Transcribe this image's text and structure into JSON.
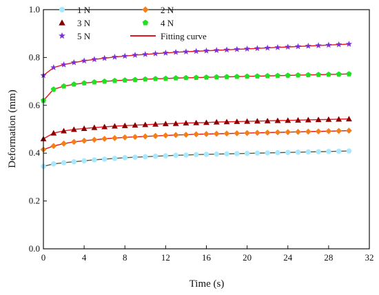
{
  "chart_data": {
    "type": "scatter",
    "xlabel": "Time (s)",
    "ylabel": "Deformation (mm)",
    "xlim": [
      0,
      32
    ],
    "ylim": [
      0.0,
      1.0
    ],
    "x_ticks": [
      "0",
      "4",
      "8",
      "12",
      "16",
      "20",
      "24",
      "28",
      "32"
    ],
    "y_ticks": [
      "0.0",
      "0.2",
      "0.4",
      "0.6",
      "0.8",
      "1.0"
    ],
    "legend_position": "top-left",
    "fit_label": "Fitting curve",
    "fit_color": "#e8101a",
    "x": [
      0,
      1,
      2,
      3,
      4,
      5,
      6,
      7,
      8,
      9,
      10,
      11,
      12,
      13,
      14,
      15,
      16,
      17,
      18,
      19,
      20,
      21,
      22,
      23,
      24,
      25,
      26,
      27,
      28,
      29,
      30
    ],
    "series": [
      {
        "name": "1 N",
        "marker": "circle",
        "color": "#a8e8ff",
        "fit_line_color": "#5a5a3a",
        "values": [
          0.345,
          0.355,
          0.36,
          0.364,
          0.368,
          0.372,
          0.375,
          0.378,
          0.381,
          0.383,
          0.385,
          0.387,
          0.389,
          0.391,
          0.392,
          0.394,
          0.395,
          0.396,
          0.397,
          0.398,
          0.399,
          0.4,
          0.401,
          0.402,
          0.403,
          0.404,
          0.405,
          0.406,
          0.407,
          0.408,
          0.409
        ]
      },
      {
        "name": "2 N",
        "marker": "diamond",
        "color": "#f57f17",
        "fit_line_color": "#e8101a",
        "values": [
          0.415,
          0.43,
          0.44,
          0.447,
          0.452,
          0.456,
          0.46,
          0.463,
          0.466,
          0.468,
          0.47,
          0.472,
          0.474,
          0.476,
          0.477,
          0.479,
          0.48,
          0.481,
          0.482,
          0.483,
          0.484,
          0.485,
          0.486,
          0.487,
          0.488,
          0.489,
          0.49,
          0.491,
          0.492,
          0.493,
          0.494
        ]
      },
      {
        "name": "3 N",
        "marker": "triangle",
        "color": "#8b0000",
        "fit_line_color": "#e8101a",
        "values": [
          0.46,
          0.484,
          0.493,
          0.499,
          0.503,
          0.507,
          0.51,
          0.513,
          0.515,
          0.517,
          0.519,
          0.521,
          0.523,
          0.524,
          0.526,
          0.527,
          0.528,
          0.53,
          0.531,
          0.532,
          0.533,
          0.534,
          0.535,
          0.536,
          0.537,
          0.538,
          0.539,
          0.54,
          0.541,
          0.542,
          0.543
        ]
      },
      {
        "name": "4 N",
        "marker": "pentagon",
        "color": "#22e022",
        "fit_line_color": "#e8101a",
        "values": [
          0.62,
          0.667,
          0.68,
          0.688,
          0.693,
          0.697,
          0.7,
          0.703,
          0.705,
          0.707,
          0.709,
          0.711,
          0.712,
          0.714,
          0.715,
          0.716,
          0.717,
          0.718,
          0.719,
          0.72,
          0.721,
          0.722,
          0.723,
          0.724,
          0.725,
          0.726,
          0.727,
          0.728,
          0.729,
          0.73,
          0.731
        ]
      },
      {
        "name": "5 N",
        "marker": "star",
        "color": "#7b2fd6",
        "fit_line_color": "#e8101a",
        "values": [
          0.725,
          0.758,
          0.77,
          0.779,
          0.786,
          0.792,
          0.797,
          0.802,
          0.806,
          0.81,
          0.813,
          0.816,
          0.819,
          0.822,
          0.824,
          0.826,
          0.828,
          0.83,
          0.832,
          0.834,
          0.836,
          0.838,
          0.84,
          0.842,
          0.844,
          0.846,
          0.848,
          0.85,
          0.852,
          0.854,
          0.856
        ]
      }
    ]
  }
}
